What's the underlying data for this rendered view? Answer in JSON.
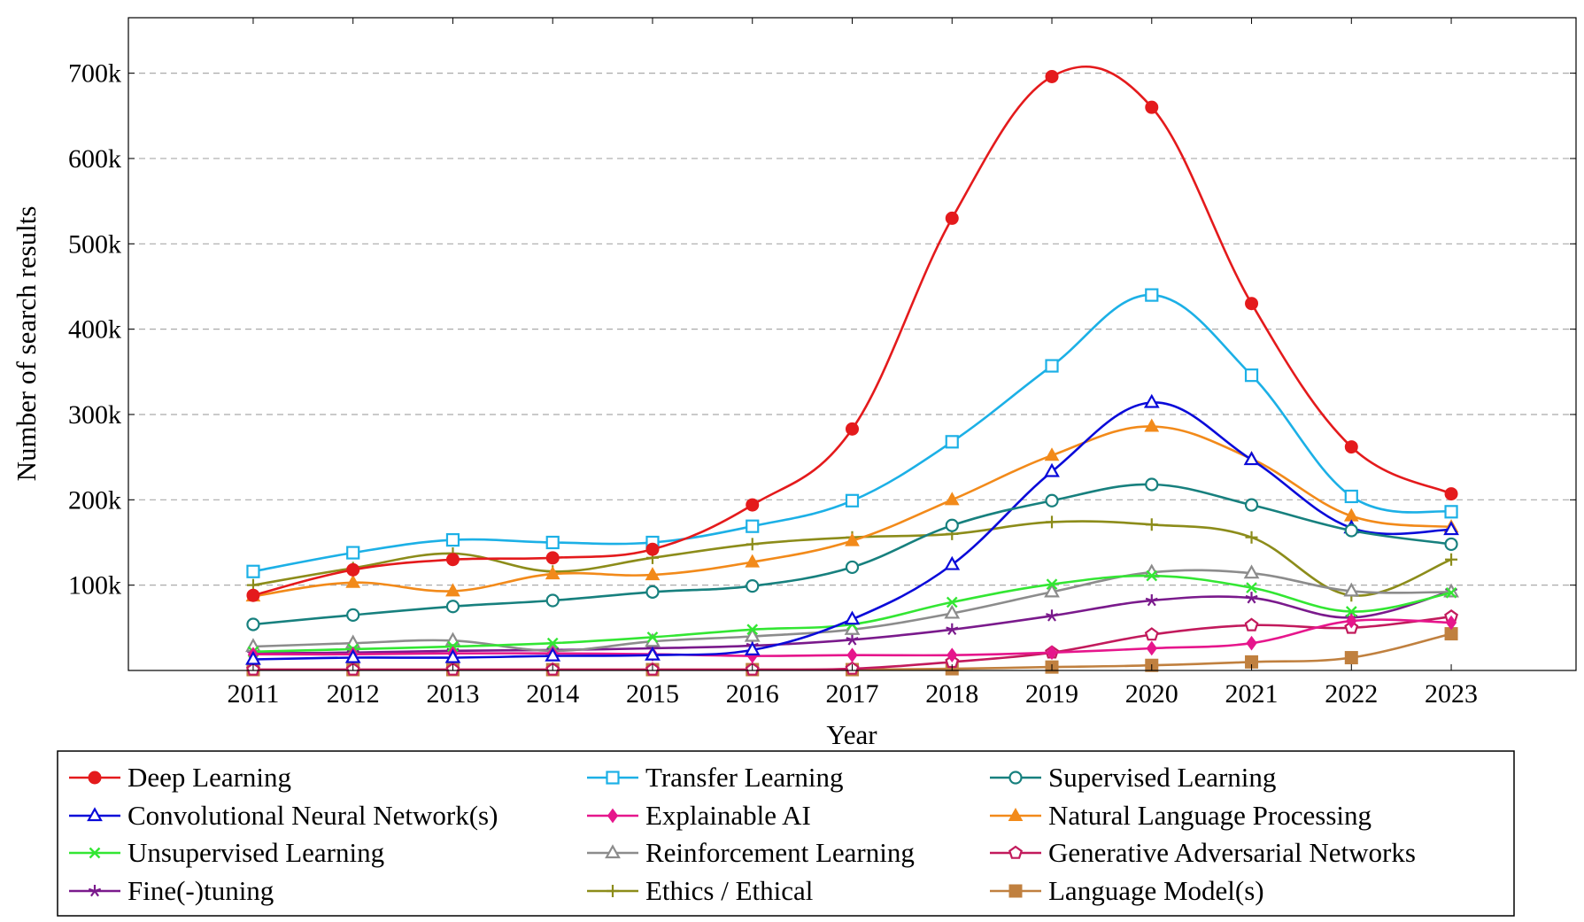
{
  "chart_data": {
    "type": "line",
    "title": "",
    "xlabel": "Year",
    "ylabel": "Number of search results",
    "x": [
      2011,
      2012,
      2013,
      2014,
      2015,
      2016,
      2017,
      2018,
      2019,
      2020,
      2021,
      2022,
      2023
    ],
    "xlim": [
      2009.75,
      2024.25
    ],
    "ylim": [
      0,
      765000
    ],
    "yticks": [
      100000,
      200000,
      300000,
      400000,
      500000,
      600000,
      700000
    ],
    "ytick_labels": [
      "100k",
      "200k",
      "300k",
      "400k",
      "500k",
      "600k",
      "700k"
    ],
    "grid": "horizontal dashed",
    "legend_position": "below plot, three columns",
    "series": [
      {
        "name": "Deep Learning",
        "color": "#e41a1c",
        "marker": "filled-circle",
        "values": [
          88000,
          118000,
          130000,
          132000,
          142000,
          194000,
          283000,
          530000,
          696000,
          660000,
          430000,
          262000,
          207000
        ]
      },
      {
        "name": "Transfer Learning",
        "color": "#1cb0e6",
        "marker": "open-square",
        "values": [
          116000,
          138000,
          153000,
          150000,
          150000,
          169000,
          199000,
          268000,
          357000,
          440000,
          346000,
          204000,
          186000
        ]
      },
      {
        "name": "Supervised Learning",
        "color": "#17807e",
        "marker": "open-circle",
        "values": [
          54000,
          65000,
          75000,
          82000,
          92000,
          99000,
          121000,
          170000,
          199000,
          218000,
          194000,
          164000,
          148000
        ]
      },
      {
        "name": "Convolutional Neural Network(s)",
        "color": "#0a0ad9",
        "marker": "open-triangle",
        "values": [
          13000,
          15000,
          15000,
          17000,
          18000,
          24000,
          60000,
          124000,
          233000,
          314000,
          247000,
          167000,
          165000
        ]
      },
      {
        "name": "Explainable AI",
        "color": "#e6168c",
        "marker": "filled-diamond",
        "values": [
          19000,
          19000,
          20000,
          20000,
          19000,
          17000,
          18000,
          18000,
          21000,
          26000,
          32000,
          58000,
          56000
        ]
      },
      {
        "name": "Natural Language Processing",
        "color": "#f28a1a",
        "marker": "filled-triangle",
        "values": [
          87000,
          103000,
          93000,
          113000,
          112000,
          127000,
          152000,
          200000,
          252000,
          286000,
          248000,
          181000,
          168000
        ]
      },
      {
        "name": "Unsupervised Learning",
        "color": "#33e633",
        "marker": "cross",
        "values": [
          22000,
          25000,
          28000,
          32000,
          39000,
          48000,
          54000,
          80000,
          101000,
          111000,
          97000,
          69000,
          91000
        ]
      },
      {
        "name": "Reinforcement Learning",
        "color": "#8c8c8c",
        "marker": "open-triangle",
        "values": [
          28000,
          32000,
          35000,
          23000,
          34000,
          40000,
          48000,
          67000,
          92000,
          115000,
          114000,
          93000,
          92000
        ]
      },
      {
        "name": "Generative Adversarial Networks",
        "color": "#c21a5c",
        "marker": "open-pentagon",
        "values": [
          1000,
          1000,
          1000,
          1000,
          1000,
          1000,
          2000,
          10000,
          21000,
          42000,
          53000,
          50000,
          63000
        ]
      },
      {
        "name": "Fine(-)tuning",
        "color": "#7a1a8c",
        "marker": "star",
        "values": [
          20000,
          21000,
          23000,
          24000,
          26000,
          29000,
          36000,
          48000,
          64000,
          82000,
          85000,
          62000,
          93000
        ]
      },
      {
        "name": "Ethics / Ethical",
        "color": "#8c8c1a",
        "marker": "plus",
        "values": [
          100000,
          120000,
          137000,
          116000,
          132000,
          148000,
          156000,
          160000,
          174000,
          171000,
          156000,
          88000,
          130000
        ]
      },
      {
        "name": "Language Model(s)",
        "color": "#c0803f",
        "marker": "filled-square",
        "values": [
          1000,
          1000,
          1000,
          1000,
          1000,
          1000,
          1000,
          2000,
          4000,
          6000,
          10000,
          15000,
          43000
        ]
      }
    ]
  }
}
